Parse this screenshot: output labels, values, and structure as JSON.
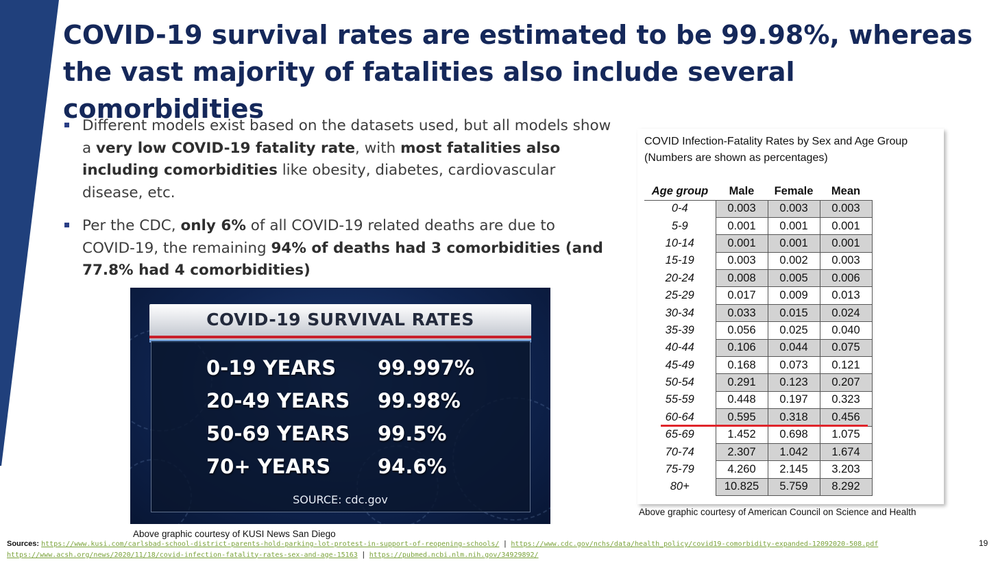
{
  "title": {
    "part1": "COVID-19 survival rates are estimated to be ",
    "bold1": "99.98%",
    "part2": ", whereas the ",
    "bold2": "vast majority of fatalities also include several comorbidities"
  },
  "bullets": [
    {
      "t1": "Different models exist based on the datasets used, but all models show a ",
      "b1": "very low COVID-19 fatality rate",
      "t2": ", with ",
      "b2": "most fatalities also including comorbidities",
      "t3": " like obesity, diabetes, cardiovascular disease, etc."
    },
    {
      "t1": "Per the CDC, ",
      "b1": "only 6%",
      "t2": " of all COVID-19 related deaths are due to COVID-19, the remaining ",
      "b2": "94% of deaths had 3 comorbidities (and 77.8% had 4 comorbidities)",
      "t3": ""
    }
  ],
  "news_graphic": {
    "title": "COVID-19 SURVIVAL RATES",
    "rows": [
      {
        "age": "0-19 YEARS",
        "rate": "99.997%"
      },
      {
        "age": "20-49 YEARS",
        "rate": "99.98%"
      },
      {
        "age": "50-69 YEARS",
        "rate": "99.5%"
      },
      {
        "age": "70+ YEARS",
        "rate": "94.6%"
      }
    ],
    "source": "SOURCE: cdc.gov",
    "credit": "Above graphic courtesy of KUSI News San Diego"
  },
  "ifr_table": {
    "caption_line1": "COVID Infection-Fatality Rates by Sex and Age Group",
    "caption_line2": "(Numbers are shown as percentages)",
    "headers": [
      "Age group",
      "Male",
      "Female",
      "Mean"
    ],
    "rows": [
      [
        "0-4",
        "0.003",
        "0.003",
        "0.003"
      ],
      [
        "5-9",
        "0.001",
        "0.001",
        "0.001"
      ],
      [
        "10-14",
        "0.001",
        "0.001",
        "0.001"
      ],
      [
        "15-19",
        "0.003",
        "0.002",
        "0.003"
      ],
      [
        "20-24",
        "0.008",
        "0.005",
        "0.006"
      ],
      [
        "25-29",
        "0.017",
        "0.009",
        "0.013"
      ],
      [
        "30-34",
        "0.033",
        "0.015",
        "0.024"
      ],
      [
        "35-39",
        "0.056",
        "0.025",
        "0.040"
      ],
      [
        "40-44",
        "0.106",
        "0.044",
        "0.075"
      ],
      [
        "45-49",
        "0.168",
        "0.073",
        "0.121"
      ],
      [
        "50-54",
        "0.291",
        "0.123",
        "0.207"
      ],
      [
        "55-59",
        "0.448",
        "0.197",
        "0.323"
      ],
      [
        "60-64",
        "0.595",
        "0.318",
        "0.456"
      ],
      [
        "65-69",
        "1.452",
        "0.698",
        "1.075"
      ],
      [
        "70-74",
        "2.307",
        "1.042",
        "1.674"
      ],
      [
        "75-79",
        "4.260",
        "2.145",
        "3.203"
      ],
      [
        "80+",
        "10.825",
        "5.759",
        "8.292"
      ]
    ],
    "credit": "Above graphic courtesy of American Council on Science and Health"
  },
  "sources": {
    "label": "Sources:",
    "links": [
      "https://www.kusi.com/carlsbad-school-district-parents-hold-parking-lot-protest-in-support-of-reopening-schools/",
      "https://www.cdc.gov/nchs/data/health_policy/covid19-comorbidity-expanded-12092020-508.pdf",
      "https://www.acsh.org/news/2020/11/18/covid-infection-fatality-rates-sex-and-age-15163",
      "https://pubmed.ncbi.nlm.nih.gov/34929892/"
    ],
    "separator": "|"
  },
  "page_number": "19",
  "colors": {
    "title": "#15285a",
    "accent": "#1f3f7a",
    "link": "#7aa23a",
    "cutoff_line": "#e0242a"
  }
}
